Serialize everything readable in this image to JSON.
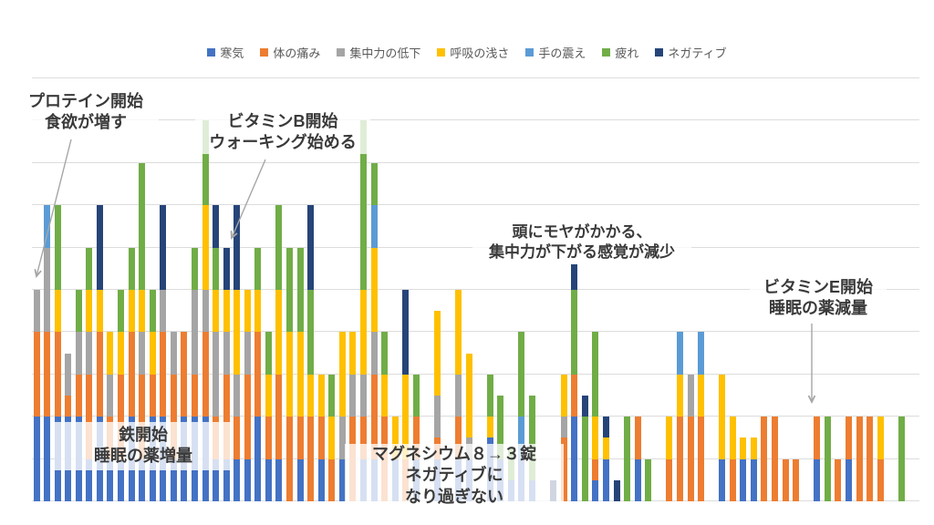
{
  "chart_data": {
    "type": "bar",
    "stacked": true,
    "title": "",
    "x_axis": {
      "labels_visible": false,
      "note": "daily entries, no tick labels shown"
    },
    "y_axis": {
      "min": 0,
      "max": 10,
      "step": 1,
      "labels_visible": false,
      "gridlines": true
    },
    "series": [
      {
        "key": "samuke",
        "name": "寒気",
        "color": "#4472C4"
      },
      {
        "key": "itami",
        "name": "体の痛み",
        "color": "#ED7D31"
      },
      {
        "key": "shuchu",
        "name": "集中力の低下",
        "color": "#A5A5A5"
      },
      {
        "key": "kokyu",
        "name": "呼吸の浅さ",
        "color": "#FFC000"
      },
      {
        "key": "furue",
        "name": "手の震え",
        "color": "#5B9BD5"
      },
      {
        "key": "tsukare",
        "name": "疲れ",
        "color": "#70AD47"
      },
      {
        "key": "negative",
        "name": "ネガティブ",
        "color": "#264478"
      }
    ],
    "bars": [
      {
        "slot": 0,
        "values": [
          2,
          2,
          1,
          0,
          0,
          0,
          0
        ]
      },
      {
        "slot": 1,
        "values": [
          2,
          2,
          2,
          0,
          1,
          0,
          0
        ]
      },
      {
        "slot": 2,
        "values": [
          2,
          2,
          0,
          1,
          0,
          2,
          0
        ]
      },
      {
        "slot": 3,
        "values": [
          2,
          0.5,
          1,
          0,
          0,
          0,
          0
        ]
      },
      {
        "slot": 4,
        "values": [
          2,
          1,
          1,
          0,
          0,
          1,
          0
        ]
      },
      {
        "slot": 5,
        "values": [
          1,
          2,
          1,
          1,
          0,
          1,
          0
        ]
      },
      {
        "slot": 6,
        "values": [
          2,
          2,
          0,
          1,
          0,
          0,
          2
        ]
      },
      {
        "slot": 7,
        "values": [
          1,
          1,
          1,
          1,
          0,
          0,
          0
        ]
      },
      {
        "slot": 8,
        "values": [
          1,
          2,
          0,
          1,
          0,
          1,
          0
        ]
      },
      {
        "slot": 9,
        "values": [
          2,
          2,
          0,
          1,
          0,
          1,
          0
        ]
      },
      {
        "slot": 10,
        "values": [
          1,
          2,
          1,
          1,
          0,
          3,
          0
        ]
      },
      {
        "slot": 11,
        "values": [
          2,
          1,
          0,
          1,
          0,
          1,
          0
        ]
      },
      {
        "slot": 12,
        "values": [
          2,
          2,
          1,
          0,
          0,
          0,
          2
        ]
      },
      {
        "slot": 13,
        "values": [
          1,
          2,
          1,
          0,
          0,
          0,
          0
        ]
      },
      {
        "slot": 14,
        "values": [
          2,
          2,
          0,
          0,
          0,
          0,
          0
        ]
      },
      {
        "slot": 15,
        "values": [
          2,
          1,
          2,
          0,
          0,
          1,
          0
        ]
      },
      {
        "slot": 16,
        "values": [
          2,
          2,
          1,
          2,
          0,
          2,
          0
        ]
      },
      {
        "slot": 17,
        "values": [
          1,
          1,
          2,
          1,
          0,
          1,
          1
        ]
      },
      {
        "slot": 18,
        "values": [
          1,
          2,
          1,
          1,
          0,
          0,
          1
        ]
      },
      {
        "slot": 19,
        "values": [
          1,
          1,
          1,
          2,
          0,
          0,
          2
        ]
      },
      {
        "slot": 20,
        "values": [
          1,
          2,
          1,
          1,
          0,
          0,
          0
        ]
      },
      {
        "slot": 21,
        "values": [
          2,
          2,
          0,
          1,
          0,
          1,
          0
        ]
      },
      {
        "slot": 22,
        "values": [
          1,
          1,
          0,
          1,
          0,
          1,
          0
        ]
      },
      {
        "slot": 23,
        "values": [
          1,
          2,
          0,
          2,
          0,
          2,
          0
        ]
      },
      {
        "slot": 24,
        "values": [
          0,
          2,
          0,
          2,
          0,
          2,
          0
        ]
      },
      {
        "slot": 25,
        "values": [
          1,
          1,
          0,
          2,
          0,
          2,
          0
        ]
      },
      {
        "slot": 26,
        "values": [
          0,
          2,
          0,
          1,
          0,
          2,
          2
        ]
      },
      {
        "slot": 27,
        "values": [
          1,
          1,
          0,
          1,
          0,
          0,
          0
        ]
      },
      {
        "slot": 28,
        "values": [
          0,
          1,
          0,
          1,
          0,
          1,
          0
        ]
      },
      {
        "slot": 29,
        "values": [
          1,
          0,
          1,
          2,
          0,
          0,
          0
        ]
      },
      {
        "slot": 30,
        "values": [
          0,
          2,
          1,
          1,
          0,
          0,
          0
        ]
      },
      {
        "slot": 31,
        "values": [
          1,
          1,
          1,
          2,
          0,
          4,
          0
        ]
      },
      {
        "slot": 32,
        "values": [
          1,
          2,
          1,
          2,
          1,
          1,
          0
        ]
      },
      {
        "slot": 33,
        "values": [
          0,
          2,
          0,
          1,
          0,
          1,
          0
        ]
      },
      {
        "slot": 34,
        "values": [
          1,
          0,
          0,
          1,
          0,
          0,
          0
        ]
      },
      {
        "slot": 35,
        "values": [
          0,
          1,
          0,
          2,
          0,
          0,
          2
        ]
      },
      {
        "slot": 36,
        "values": [
          1,
          1,
          0,
          0,
          0,
          1,
          0
        ]
      },
      {
        "slot": 38,
        "values": [
          1,
          0.5,
          1,
          2,
          0,
          0,
          0
        ]
      },
      {
        "slot": 40,
        "values": [
          1,
          1,
          1,
          2,
          0,
          0,
          0
        ]
      },
      {
        "slot": 41,
        "values": [
          1,
          0,
          0.5,
          2,
          0,
          0,
          0
        ]
      },
      {
        "slot": 43,
        "values": [
          1.5,
          0,
          0,
          0.5,
          0,
          1,
          0
        ]
      },
      {
        "slot": 44,
        "values": [
          1,
          0,
          0,
          0,
          0,
          1.5,
          0
        ]
      },
      {
        "slot": 45,
        "values": [
          0.5,
          0,
          0,
          0,
          0,
          0.75,
          0
        ]
      },
      {
        "slot": 46,
        "values": [
          1,
          0,
          0,
          0,
          1,
          2,
          0
        ]
      },
      {
        "slot": 47,
        "values": [
          0.5,
          0,
          0,
          0,
          0,
          2,
          0
        ]
      },
      {
        "slot": 49,
        "values": [
          0,
          0,
          0,
          0,
          0,
          0,
          0.5
        ]
      },
      {
        "slot": 50,
        "values": [
          0,
          1.5,
          0.5,
          1,
          0,
          0,
          0
        ]
      },
      {
        "slot": 51,
        "values": [
          2,
          1,
          0,
          0,
          0,
          2,
          0.6
        ]
      },
      {
        "slot": 52,
        "values": [
          0,
          0,
          0,
          0,
          0,
          2,
          0.5
        ]
      },
      {
        "slot": 53,
        "values": [
          0.5,
          0.5,
          0,
          1,
          0,
          2,
          0
        ]
      },
      {
        "slot": 54,
        "values": [
          1,
          0,
          0,
          0.5,
          0,
          0,
          0.5
        ]
      },
      {
        "slot": 55,
        "values": [
          0,
          0,
          0,
          0,
          0,
          0,
          0.5
        ]
      },
      {
        "slot": 56,
        "values": [
          0,
          0,
          0,
          0,
          0,
          2,
          0
        ]
      },
      {
        "slot": 57,
        "values": [
          1,
          1,
          0,
          0,
          0,
          0,
          0
        ]
      },
      {
        "slot": 58,
        "values": [
          0,
          0,
          0,
          0,
          0,
          1,
          0
        ]
      },
      {
        "slot": 60,
        "values": [
          0,
          1,
          0,
          1,
          0,
          0,
          0
        ]
      },
      {
        "slot": 61,
        "values": [
          0,
          2,
          0,
          1,
          1,
          0,
          0
        ]
      },
      {
        "slot": 62,
        "values": [
          0,
          2,
          1,
          0,
          0,
          0,
          0
        ]
      },
      {
        "slot": 63,
        "values": [
          0,
          2,
          0,
          1,
          1,
          0,
          0
        ]
      },
      {
        "slot": 65,
        "values": [
          1,
          0,
          0,
          2,
          0,
          0,
          0
        ]
      },
      {
        "slot": 66,
        "values": [
          0,
          1,
          0,
          1,
          0,
          0,
          0
        ]
      },
      {
        "slot": 67,
        "values": [
          1,
          0,
          0,
          0.5,
          0,
          0,
          0
        ]
      },
      {
        "slot": 68,
        "values": [
          1,
          0,
          0,
          0.5,
          0,
          0,
          0
        ]
      },
      {
        "slot": 69,
        "values": [
          0,
          2,
          0,
          0,
          0,
          0,
          0
        ]
      },
      {
        "slot": 70,
        "values": [
          0,
          2,
          0,
          0,
          0,
          0,
          0
        ]
      },
      {
        "slot": 71,
        "values": [
          0,
          1,
          0,
          0,
          0,
          0,
          0
        ]
      },
      {
        "slot": 72,
        "values": [
          0,
          1,
          0,
          0,
          0,
          0,
          0
        ]
      },
      {
        "slot": 74,
        "values": [
          1,
          1,
          0,
          0,
          0,
          0,
          0
        ]
      },
      {
        "slot": 75,
        "values": [
          0,
          0,
          0,
          0,
          0,
          2,
          0
        ]
      },
      {
        "slot": 76,
        "values": [
          0,
          1,
          0,
          0,
          0,
          0,
          0
        ]
      },
      {
        "slot": 77,
        "values": [
          1,
          1,
          0,
          0,
          0,
          0,
          0
        ]
      },
      {
        "slot": 78,
        "values": [
          0,
          2,
          0,
          0,
          0,
          0,
          0
        ]
      },
      {
        "slot": 79,
        "values": [
          0,
          2,
          0,
          0,
          0,
          0,
          0
        ]
      },
      {
        "slot": 80,
        "values": [
          0,
          1,
          0,
          1,
          0,
          0,
          0
        ]
      },
      {
        "slot": 82,
        "values": [
          0,
          0,
          0,
          0,
          0,
          2,
          0
        ]
      }
    ]
  },
  "annotations": {
    "protein": {
      "lines": [
        "プロテイン開始",
        "食欲が増す"
      ]
    },
    "vitamin_b": {
      "lines": [
        "ビタミンB開始",
        "ウォーキング始める"
      ]
    },
    "brain_fog": {
      "lines": [
        "頭にモヤがかかる、",
        "集中力が下がる感覚が減少"
      ]
    },
    "vitamin_e": {
      "lines": [
        "ビタミンE開始",
        "睡眠の薬減量"
      ]
    },
    "iron": {
      "lines": [
        "鉄開始",
        "睡眠の薬増量"
      ]
    },
    "magnesium": {
      "lines": [
        "マグネシウム８→３錠",
        "ネガティブに",
        "なり過ぎない"
      ]
    }
  },
  "arrow_color": "#A6A6A6"
}
